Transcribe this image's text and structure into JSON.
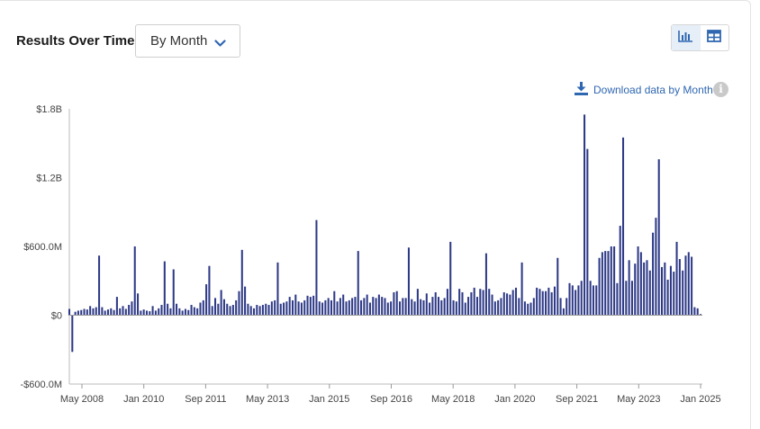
{
  "header": {
    "title": "Results Over Time",
    "period_select": "By Month",
    "download_label": "Download data by Month",
    "info_glyph": "i"
  },
  "icons": {
    "chart_view": "bar-chart-icon",
    "table_view": "table-icon",
    "download": "download-icon",
    "chevron": "chevron-down-icon"
  },
  "colors": {
    "bar": "#2e3a87",
    "accent": "#2f67b1"
  },
  "chart_data": {
    "type": "bar",
    "title": "",
    "xlabel": "",
    "ylabel": "",
    "ylim": [
      -600,
      1800
    ],
    "yticks": [
      -600,
      0,
      600,
      1200,
      1800
    ],
    "ytick_labels": [
      "-$600.0M",
      "$0",
      "$600.0M",
      "$1.2B",
      "$1.8B"
    ],
    "xtick_labels": [
      "May 2008",
      "Jan 2010",
      "Sep 2011",
      "May 2013",
      "Jan 2015",
      "Sep 2016",
      "May 2018",
      "Jan 2020",
      "Sep 2021",
      "May 2023",
      "Jan 2025"
    ],
    "x_start": "Mar 2008",
    "x_end": "Feb 2025",
    "unit": "USD millions",
    "series": [
      {
        "values": [
          55,
          -320,
          30,
          40,
          45,
          55,
          50,
          80,
          60,
          70,
          520,
          70,
          40,
          50,
          60,
          45,
          160,
          60,
          80,
          55,
          90,
          120,
          600,
          190,
          40,
          50,
          40,
          35,
          80,
          40,
          60,
          90,
          470,
          100,
          60,
          400,
          100,
          60,
          40,
          55,
          45,
          90,
          70,
          60,
          110,
          130,
          270,
          430,
          80,
          150,
          100,
          220,
          140,
          100,
          80,
          90,
          130,
          210,
          570,
          250,
          100,
          80,
          60,
          90,
          80,
          90,
          100,
          90,
          120,
          130,
          460,
          100,
          110,
          120,
          160,
          130,
          180,
          120,
          110,
          130,
          170,
          160,
          170,
          830,
          120,
          110,
          130,
          150,
          130,
          210,
          120,
          150,
          180,
          120,
          130,
          150,
          160,
          560,
          130,
          150,
          180,
          110,
          160,
          150,
          180,
          160,
          150,
          110,
          120,
          200,
          210,
          120,
          150,
          150,
          590,
          140,
          120,
          230,
          140,
          130,
          190,
          110,
          160,
          200,
          160,
          130,
          150,
          230,
          640,
          130,
          120,
          230,
          200,
          110,
          160,
          200,
          240,
          160,
          230,
          220,
          540,
          230,
          180,
          120,
          130,
          150,
          200,
          190,
          180,
          220,
          240,
          150,
          460,
          120,
          100,
          110,
          150,
          240,
          230,
          210,
          210,
          240,
          200,
          250,
          500,
          150,
          60,
          150,
          280,
          260,
          220,
          260,
          300,
          1750,
          1450,
          300,
          260,
          260,
          500,
          550,
          560,
          560,
          600,
          600,
          280,
          780,
          1550,
          300,
          480,
          300,
          450,
          600,
          550,
          460,
          480,
          390,
          720,
          850,
          1360,
          420,
          460,
          310,
          430,
          380,
          640,
          490,
          390,
          520,
          550,
          510,
          70,
          60,
          10
        ]
      }
    ],
    "grid": false,
    "legend": "none"
  }
}
